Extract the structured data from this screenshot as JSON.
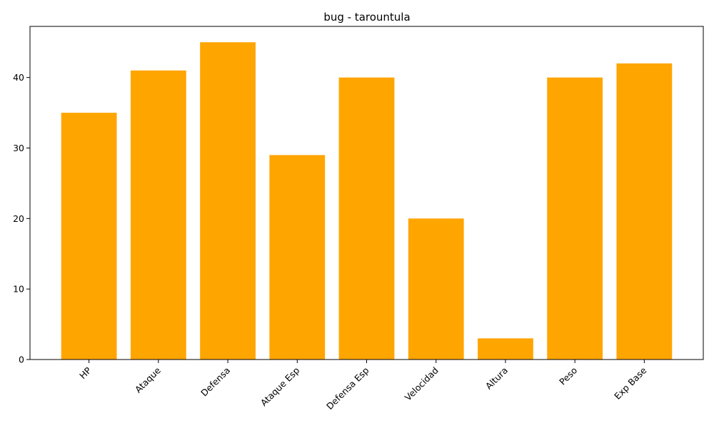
{
  "chart_data": {
    "type": "bar",
    "title": "bug - tarountula",
    "xlabel": "",
    "ylabel": "",
    "categories": [
      "HP",
      "Ataque",
      "Defensa",
      "Ataque Esp",
      "Defensa Esp",
      "Velocidad",
      "Altura",
      "Peso",
      "Exp Base"
    ],
    "values": [
      35,
      41,
      45,
      29,
      40,
      20,
      3,
      40,
      42
    ],
    "ylim": [
      0,
      47.25
    ],
    "yticks": [
      0,
      10,
      20,
      30,
      40
    ],
    "bar_color": "#ffa500",
    "grid": false,
    "legend": "none",
    "xtick_rotation": 45
  }
}
